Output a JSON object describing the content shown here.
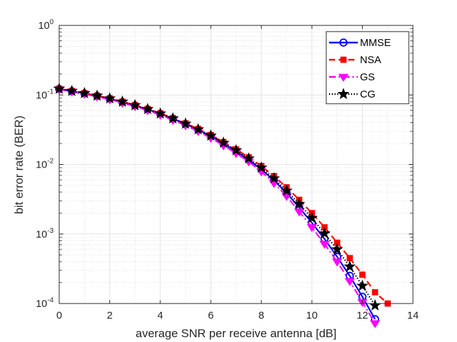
{
  "chart_data": {
    "type": "line",
    "xlabel": "average SNR per receive antenna [dB]",
    "ylabel": "bit error rate (BER)",
    "xlim": [
      0,
      14
    ],
    "ylim": [
      0.0001,
      1
    ],
    "yscale": "log",
    "grid": true,
    "minor_grid": true,
    "legend_position": "top-right",
    "xticks": [
      0,
      2,
      4,
      6,
      8,
      10,
      12,
      14
    ],
    "xtick_labels": [
      "0",
      "2",
      "4",
      "6",
      "8",
      "10",
      "12",
      "14"
    ],
    "yticks": [
      {
        "value": 1,
        "base": "10",
        "exp": "0"
      },
      {
        "value": 0.1,
        "base": "10",
        "exp": "-1"
      },
      {
        "value": 0.01,
        "base": "10",
        "exp": "-2"
      },
      {
        "value": 0.001,
        "base": "10",
        "exp": "-3"
      },
      {
        "value": 0.0001,
        "base": "10",
        "exp": "-4"
      }
    ],
    "series": [
      {
        "name": "MMSE",
        "color": "#0000ff",
        "dash": "solid",
        "marker": "circle",
        "x": [
          0,
          0.5,
          1,
          1.5,
          2,
          2.5,
          3,
          3.5,
          4,
          4.5,
          5,
          5.5,
          6,
          6.5,
          7,
          7.5,
          8,
          8.5,
          9,
          9.5,
          10,
          10.5,
          11,
          11.5,
          12,
          12.5
        ],
        "y": [
          0.122,
          0.113,
          0.105,
          0.0965,
          0.088,
          0.079,
          0.0705,
          0.062,
          0.0535,
          0.0455,
          0.038,
          0.0315,
          0.0255,
          0.02,
          0.0155,
          0.0117,
          0.0085,
          0.0059,
          0.0039,
          0.0024,
          0.00145,
          0.00085,
          0.00047,
          0.00025,
          0.000125,
          5.95e-05
        ]
      },
      {
        "name": "NSA",
        "color": "#ff0000",
        "dash": "dashed",
        "marker": "square",
        "x": [
          0,
          0.5,
          1,
          1.5,
          2,
          2.5,
          3,
          3.5,
          4,
          4.5,
          5,
          5.5,
          6,
          6.5,
          7,
          7.5,
          8,
          8.5,
          9,
          9.5,
          10,
          10.5,
          11,
          11.5,
          12,
          12.5,
          13
        ],
        "y": [
          0.123,
          0.114,
          0.106,
          0.0975,
          0.089,
          0.08,
          0.0715,
          0.063,
          0.0545,
          0.0465,
          0.039,
          0.0325,
          0.0265,
          0.021,
          0.0165,
          0.0127,
          0.0095,
          0.0068,
          0.0047,
          0.0031,
          0.002,
          0.00125,
          0.00075,
          0.00045,
          0.00026,
          0.000145,
          0.0001
        ]
      },
      {
        "name": "GS",
        "color": "#ff00ff",
        "dash": "dashdot",
        "marker": "triangle-down",
        "x": [
          0,
          0.5,
          1,
          1.5,
          2,
          2.5,
          3,
          3.5,
          4,
          4.5,
          5,
          5.5,
          6,
          6.5,
          7,
          7.5,
          8,
          8.5,
          9,
          9.5,
          10,
          10.5,
          11,
          11.5,
          12,
          12.5
        ],
        "y": [
          0.12,
          0.111,
          0.103,
          0.0945,
          0.086,
          0.077,
          0.0685,
          0.06,
          0.0515,
          0.0435,
          0.0365,
          0.03,
          0.024,
          0.0188,
          0.0145,
          0.011,
          0.0079,
          0.0054,
          0.0035,
          0.0021,
          0.00125,
          0.00072,
          0.0004,
          0.00021,
          0.000105,
          5.2e-05
        ]
      },
      {
        "name": "CG",
        "color": "#000000",
        "dash": "dotted",
        "marker": "star",
        "x": [
          0,
          0.5,
          1,
          1.5,
          2,
          2.5,
          3,
          3.5,
          4,
          4.5,
          5,
          5.5,
          6,
          6.5,
          7,
          7.5,
          8,
          8.5,
          9,
          9.5,
          10,
          10.5,
          11,
          11.5,
          12,
          12.5
        ],
        "y": [
          0.123,
          0.114,
          0.106,
          0.0975,
          0.089,
          0.08,
          0.071,
          0.0625,
          0.054,
          0.046,
          0.0385,
          0.032,
          0.026,
          0.0205,
          0.016,
          0.0122,
          0.009,
          0.0063,
          0.0042,
          0.0027,
          0.0017,
          0.00102,
          0.0006,
          0.00034,
          0.00018,
          9.4e-05
        ]
      }
    ]
  }
}
